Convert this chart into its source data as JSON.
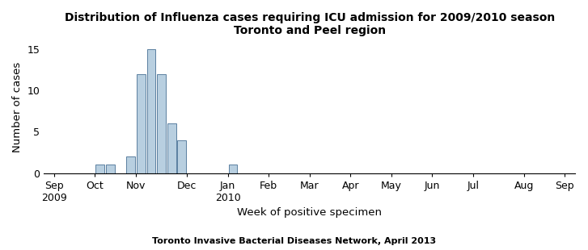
{
  "title_line1": "Distribution of Influenza cases requiring ICU admission for 2009/2010 season",
  "title_line2": "Toronto and Peel region",
  "xlabel": "Week of positive specimen",
  "ylabel": "Number of cases",
  "footnote": "Toronto Invasive Bacterial Diseases Network, April 2013",
  "bar_values": [
    1,
    1,
    2,
    12,
    15,
    12,
    6,
    4,
    1
  ],
  "bar_positions": [
    4.5,
    5.5,
    7.5,
    8.5,
    9.5,
    10.5,
    11.5,
    12.5,
    17.5
  ],
  "bar_color": "#b8cfe0",
  "bar_edgecolor": "#5a7fa0",
  "bar_width": 0.85,
  "ylim": [
    0,
    16
  ],
  "yticks": [
    0,
    5,
    10,
    15
  ],
  "month_tick_positions": [
    0,
    4,
    8,
    13,
    17,
    21,
    25,
    29,
    33,
    37,
    41,
    46,
    50
  ],
  "month_labels": [
    "Sep\n2009",
    "Oct",
    "Nov",
    "Dec",
    "Jan\n2010",
    "Feb",
    "Mar",
    "Apr",
    "May",
    "Jun",
    "Jul",
    "Aug",
    "Sep"
  ],
  "xlim": [
    -1,
    51
  ],
  "title_fontsize": 10,
  "label_fontsize": 9.5,
  "tick_fontsize": 9,
  "footnote_fontsize": 8
}
